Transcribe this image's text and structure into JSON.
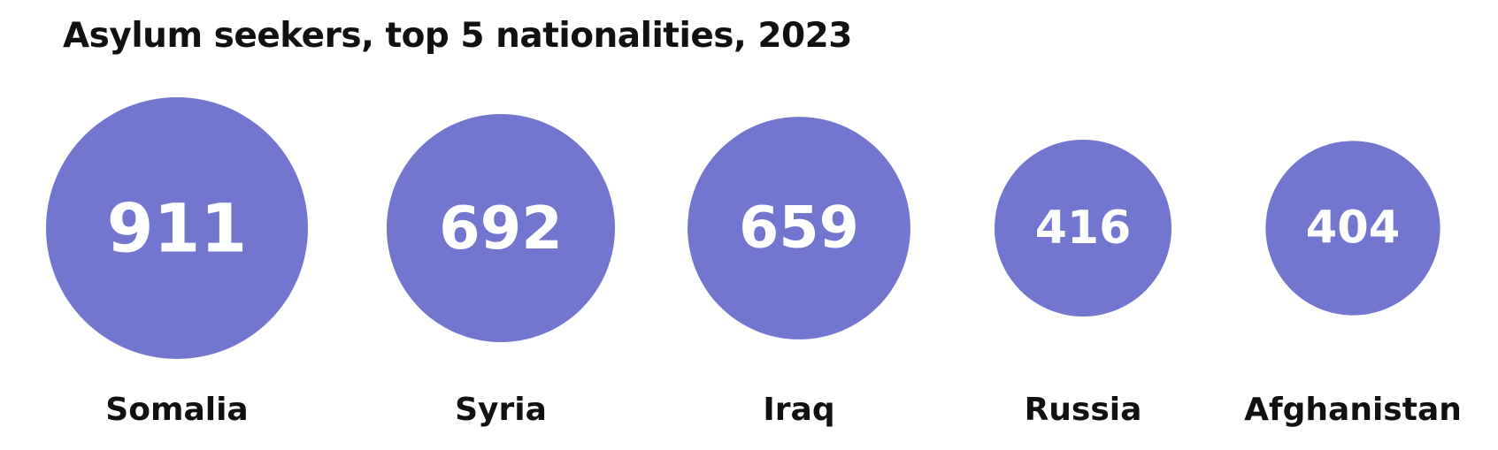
{
  "chart_data": {
    "type": "bubble",
    "title": "Asylum seekers, top 5 nationalities, 2023",
    "categories": [
      "Somalia",
      "Syria",
      "Iraq",
      "Russia",
      "Afghanistan"
    ],
    "values": [
      911,
      692,
      659,
      416,
      404
    ],
    "color": "#7376cf"
  }
}
